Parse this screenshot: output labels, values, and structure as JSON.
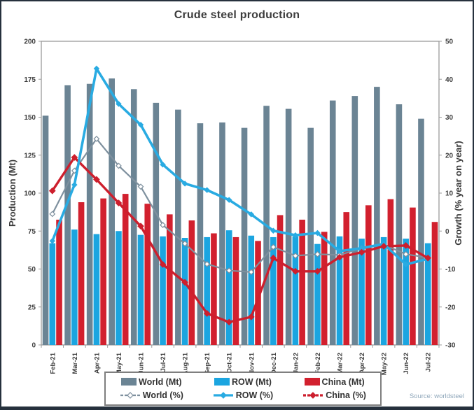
{
  "title": "Crude steel production",
  "source": "Source: worldsteel",
  "colors": {
    "world_bar": "#6b8494",
    "row_bar": "#1ba5e0",
    "china_bar": "#d2202e",
    "world_line": "#7e909e",
    "row_line": "#29abe2",
    "china_line": "#cd1f2d",
    "frame": "#26313d",
    "title_text": "#3d3d3d",
    "source_text": "#8fa7ba"
  },
  "chart_data": {
    "type": "bar+line combo",
    "categories": [
      "Feb-21",
      "Mar-21",
      "Apr-21",
      "May-21",
      "Jun-21",
      "Jul-21",
      "Aug-21",
      "Sep-21",
      "Oct-21",
      "Nov-21",
      "Dec-21",
      "Jan-22",
      "Feb-22",
      "Mar-22",
      "Apr-22",
      "May-22",
      "Jun-22",
      "Jul-22"
    ],
    "bar_series": [
      {
        "name": "World (Mt)",
        "axis": "left",
        "values": [
          151,
          171,
          172,
          175.5,
          168.5,
          159.5,
          155,
          146,
          146.5,
          143,
          157.5,
          155.5,
          143,
          161,
          164,
          170,
          158.5,
          149
        ]
      },
      {
        "name": "ROW (Mt)",
        "axis": "left",
        "values": [
          67,
          76,
          73,
          75,
          72.5,
          71.5,
          70.5,
          71,
          75.5,
          72,
          71,
          71.5,
          66.5,
          71.5,
          70,
          71,
          70,
          67
        ]
      },
      {
        "name": "China (Mt)",
        "axis": "left",
        "values": [
          82.5,
          94,
          96.5,
          99.5,
          93,
          86,
          82,
          73.5,
          71,
          68.5,
          85.5,
          82.5,
          74.5,
          87.5,
          92,
          96,
          90.5,
          81
        ]
      }
    ],
    "line_series": [
      {
        "name": "World (%)",
        "axis": "right",
        "values": [
          4.5,
          15.9,
          24.3,
          17.2,
          11.7,
          1.6,
          -3.3,
          -8.7,
          -10.4,
          -10.8,
          -4.2,
          -6.5,
          -6.1,
          -6.3,
          -4.5,
          -3.6,
          -6.1,
          -7.0
        ]
      },
      {
        "name": "ROW (%)",
        "axis": "right",
        "values": [
          -2.6,
          12.2,
          42.8,
          33.5,
          28.0,
          17.5,
          12.5,
          10.8,
          8.2,
          4.4,
          0.1,
          -1.1,
          -0.5,
          -5.3,
          -4.5,
          -3.4,
          -8.8,
          -7.3
        ]
      },
      {
        "name": "China (%)",
        "axis": "right",
        "values": [
          10.6,
          19.4,
          13.6,
          7.4,
          1.3,
          -8.8,
          -13.5,
          -21.7,
          -24.0,
          -22.6,
          -7.1,
          -10.6,
          -10.6,
          -6.9,
          -5.6,
          -4.0,
          -3.8,
          -7.1
        ]
      }
    ],
    "left_axis": {
      "label": "Production (Mt)",
      "min": 0,
      "max": 200,
      "step": 25,
      "ticks": [
        0,
        25,
        50,
        75,
        100,
        125,
        150,
        175,
        200
      ]
    },
    "right_axis": {
      "label": "Growth (% year on year)",
      "min": -30,
      "max": 50,
      "step": 10,
      "ticks": [
        -30,
        -20,
        -10,
        0,
        10,
        20,
        30,
        40,
        50
      ]
    },
    "legend_position": "bottom",
    "grid": false
  }
}
